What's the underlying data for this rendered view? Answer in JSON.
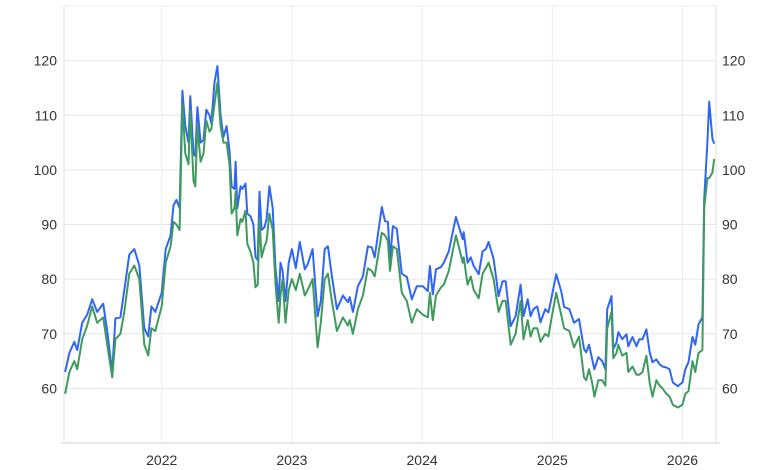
{
  "chart_data": {
    "type": "line",
    "title": "",
    "xlabel": "",
    "ylabel": "",
    "xlim": [
      "2021-04-02",
      "2026-04-05"
    ],
    "ylim": [
      50,
      130
    ],
    "grid": true,
    "legend": "none",
    "y_ticks": [
      60,
      70,
      80,
      90,
      100,
      110,
      120
    ],
    "y_tick_labels": [
      "60",
      "70",
      "80",
      "90",
      "100",
      "110",
      "120"
    ],
    "y_axes": [
      "left",
      "right"
    ],
    "x_ticks": [
      "2022-01-01",
      "2023-01-01",
      "2024-01-01",
      "2025-01-01",
      "2026-01-01"
    ],
    "x_tick_labels": [
      "2022",
      "2023",
      "2024",
      "2025",
      "2026"
    ],
    "x": [
      "2021-04-05",
      "2021-04-17",
      "2021-05-01",
      "2021-05-09",
      "2021-05-23",
      "2021-06-06",
      "2021-06-20",
      "2021-07-04",
      "2021-07-21",
      "2021-08-01",
      "2021-08-15",
      "2021-08-24",
      "2021-09-07",
      "2021-09-18",
      "2021-10-02",
      "2021-10-16",
      "2021-10-30",
      "2021-11-13",
      "2021-11-24",
      "2021-12-03",
      "2021-12-14",
      "2022-01-01",
      "2022-01-12",
      "2022-01-26",
      "2022-02-03",
      "2022-02-11",
      "2022-02-20",
      "2022-02-28",
      "2022-03-08",
      "2022-03-17",
      "2022-03-22",
      "2022-03-31",
      "2022-04-05",
      "2022-04-11",
      "2022-04-20",
      "2022-04-28",
      "2022-05-06",
      "2022-05-15",
      "2022-05-20",
      "2022-05-29",
      "2022-06-06",
      "2022-06-15",
      "2022-06-23",
      "2022-07-02",
      "2022-07-10",
      "2022-07-16",
      "2022-07-24",
      "2022-07-27",
      "2022-08-01",
      "2022-08-10",
      "2022-08-15",
      "2022-08-24",
      "2022-08-29",
      "2022-09-07",
      "2022-09-15",
      "2022-09-21",
      "2022-09-27",
      "2022-10-02",
      "2022-10-08",
      "2022-10-16",
      "2022-10-22",
      "2022-10-30",
      "2022-11-08",
      "2022-11-16",
      "2022-11-25",
      "2022-11-30",
      "2022-12-06",
      "2022-12-14",
      "2022-12-23",
      "2023-01-01",
      "2023-01-12",
      "2023-01-23",
      "2023-02-06",
      "2023-02-14",
      "2023-02-28",
      "2023-03-14",
      "2023-03-23",
      "2023-04-03",
      "2023-04-12",
      "2023-04-23",
      "2023-05-07",
      "2023-05-24",
      "2023-06-07",
      "2023-06-12",
      "2023-06-21",
      "2023-07-05",
      "2023-07-19",
      "2023-08-02",
      "2023-08-13",
      "2023-08-21",
      "2023-09-10",
      "2023-09-19",
      "2023-09-27",
      "2023-10-03",
      "2023-10-11",
      "2023-10-22",
      "2023-11-05",
      "2023-11-19",
      "2023-12-03",
      "2023-12-17",
      "2024-01-03",
      "2024-01-17",
      "2024-01-23",
      "2024-01-31",
      "2024-02-09",
      "2024-02-23",
      "2024-03-02",
      "2024-03-16",
      "2024-04-05",
      "2024-04-13",
      "2024-04-24",
      "2024-04-27",
      "2024-05-08",
      "2024-05-17",
      "2024-05-25",
      "2024-06-08",
      "2024-06-19",
      "2024-06-28",
      "2024-07-06",
      "2024-07-20",
      "2024-08-03",
      "2024-08-14",
      "2024-08-23",
      "2024-09-06",
      "2024-09-20",
      "2024-10-04",
      "2024-10-12",
      "2024-10-24",
      "2024-11-01",
      "2024-11-09",
      "2024-11-20",
      "2024-11-29",
      "2024-12-12",
      "2024-12-21",
      "2024-12-29",
      "2025-01-12",
      "2025-01-26",
      "2025-02-03",
      "2025-02-18",
      "2025-03-03",
      "2025-03-17",
      "2025-03-31",
      "2025-04-06",
      "2025-04-14",
      "2025-04-23",
      "2025-04-29",
      "2025-05-10",
      "2025-05-21",
      "2025-05-30",
      "2025-06-04",
      "2025-06-16",
      "2025-06-21",
      "2025-06-30",
      "2025-07-05",
      "2025-07-16",
      "2025-07-28",
      "2025-08-02",
      "2025-08-14",
      "2025-08-25",
      "2025-09-02",
      "2025-09-11",
      "2025-09-22",
      "2025-10-01",
      "2025-10-09",
      "2025-10-20",
      "2025-10-29",
      "2025-11-06",
      "2025-11-17",
      "2025-11-26",
      "2025-12-05",
      "2025-12-19",
      "2026-01-01",
      "2026-01-09",
      "2026-01-18",
      "2026-01-29",
      "2026-02-06",
      "2026-02-15",
      "2026-02-26",
      "2026-03-03",
      "2026-03-12",
      "2026-03-17",
      "2026-03-26",
      "2026-03-31"
    ],
    "series": [
      {
        "color": "#2f66f5",
        "values": [
          63,
          66.5,
          68.5,
          67,
          72,
          73.5,
          76.3,
          74,
          75.5,
          70.5,
          63,
          72.8,
          73,
          78,
          84.5,
          85.5,
          82.5,
          71,
          69.5,
          75,
          74,
          77.5,
          85.5,
          88,
          93.5,
          94.5,
          93,
          114.5,
          108,
          105,
          113.5,
          103,
          102.5,
          111.5,
          105,
          105.5,
          111,
          110,
          108.5,
          116,
          119,
          110,
          106,
          108,
          103.5,
          97,
          96.5,
          101.5,
          93,
          97,
          96.5,
          97.5,
          92,
          91.5,
          90,
          84,
          83.5,
          96,
          89,
          89.5,
          91,
          97,
          93,
          82,
          76,
          83,
          81.5,
          76,
          83,
          85.5,
          82,
          86.8,
          81.8,
          82.7,
          85.5,
          73.2,
          76,
          85.5,
          86,
          80.5,
          74.5,
          77,
          75.8,
          76.7,
          74,
          78.7,
          80.5,
          86,
          85.8,
          84,
          93.2,
          90.6,
          90.5,
          83.7,
          89.7,
          89.2,
          81,
          80.4,
          76.3,
          78.7,
          78.7,
          77.8,
          82.4,
          77.2,
          81.8,
          82.2,
          83,
          85.1,
          91.4,
          89.7,
          87.3,
          88.6,
          83,
          84,
          82.4,
          80.9,
          85.1,
          85.5,
          86.8,
          83.7,
          76.9,
          79.6,
          79.6,
          71.4,
          73.2,
          79,
          73.2,
          76.3,
          73.2,
          74.5,
          75,
          72.1,
          74.5,
          73.9,
          76.3,
          80.9,
          77.8,
          74.9,
          74.5,
          72,
          72.7,
          67.2,
          66.6,
          68,
          65.3,
          63.5,
          65.7,
          65,
          63.5,
          74.5,
          76.9,
          67.2,
          68.4,
          70.3,
          69,
          69.9,
          67.7,
          69.4,
          67.7,
          69,
          69,
          70.8,
          66.6,
          64.8,
          65.3,
          64.4,
          64,
          63.8,
          63.5,
          61.1,
          60.4,
          61.1,
          63.5,
          64.8,
          69.4,
          68,
          71.7,
          73,
          94.7,
          105,
          112.5,
          105.7,
          104.8
        ]
      },
      {
        "color": "#3f9a5e",
        "values": [
          59,
          63,
          65,
          63.5,
          69,
          71.5,
          75,
          72,
          73,
          68,
          62,
          69,
          70,
          74,
          81,
          82.5,
          80,
          68,
          66,
          71,
          70.5,
          75,
          83,
          86,
          90.5,
          90,
          89,
          112,
          103,
          101,
          111,
          98,
          97,
          108,
          101.5,
          103,
          109,
          107,
          107.5,
          112,
          116,
          108,
          105,
          105,
          101,
          92,
          93,
          96,
          88,
          91,
          90.5,
          92.5,
          86.5,
          85,
          83,
          78.5,
          79,
          91,
          84,
          86,
          87,
          92,
          89,
          79,
          72,
          77,
          80,
          72,
          78,
          80,
          78,
          81,
          77,
          78,
          80,
          67.5,
          72,
          80,
          81,
          76,
          70.5,
          73,
          71.5,
          72.5,
          70,
          74.5,
          77,
          82,
          81.5,
          80.5,
          88.5,
          88,
          87,
          81.5,
          86,
          85.5,
          77.5,
          76,
          72,
          74.5,
          73.5,
          73,
          77.5,
          72.5,
          77,
          78.5,
          79,
          81.5,
          88,
          86,
          83,
          84,
          79,
          80.5,
          78,
          76.5,
          81,
          82,
          83,
          80,
          74,
          76,
          76,
          68,
          70,
          76,
          69,
          72.5,
          69.5,
          71,
          71,
          68.5,
          70,
          69.5,
          72.5,
          77.5,
          73.5,
          71,
          70.5,
          67.5,
          69.5,
          62,
          61.5,
          63.5,
          61,
          58.5,
          61.5,
          61.5,
          60.5,
          71,
          74,
          65.5,
          66.5,
          68,
          66,
          66.5,
          63,
          64,
          62.5,
          62.5,
          63,
          66,
          61,
          58.5,
          61.5,
          60.5,
          60,
          59,
          58.5,
          57,
          56.5,
          57,
          59,
          59.5,
          65,
          63,
          66.5,
          67,
          93,
          98.5,
          98.5,
          99.5,
          102
        ]
      }
    ]
  }
}
